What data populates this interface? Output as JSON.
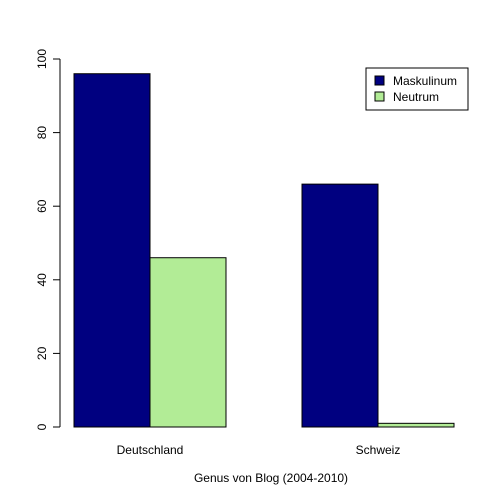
{
  "chart_data": {
    "type": "bar",
    "categories": [
      "Deutschland",
      "Schweiz"
    ],
    "series": [
      {
        "name": "Maskulinum",
        "color": "#000080",
        "values": [
          96,
          66
        ]
      },
      {
        "name": "Neutrum",
        "color": "#b2ec96",
        "values": [
          46,
          1
        ]
      }
    ],
    "title": "",
    "xlabel": "Genus von Blog (2004-2010)",
    "ylabel": "",
    "ylim": [
      0,
      100
    ],
    "yticks": [
      0,
      20,
      40,
      60,
      80,
      100
    ],
    "grid": false,
    "legend_position": "top-right"
  }
}
